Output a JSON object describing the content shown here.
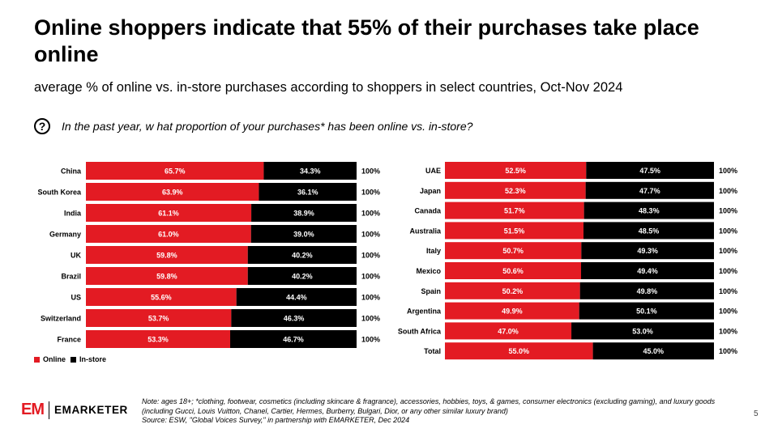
{
  "title": "Online shoppers indicate that 55% of their purchases take place online",
  "subtitle": "average % of online vs. in-store purchases according to shoppers in select countries, Oct-Nov 2024",
  "question": {
    "icon": "question-circle-icon",
    "text": "In the past year, w hat proportion of your purchases* has been online vs. in-store?"
  },
  "colors": {
    "online": "#e31b23",
    "instore": "#000000"
  },
  "legend": {
    "online": "Online",
    "instore": "In-store"
  },
  "chart_data": [
    {
      "type": "bar",
      "stacked": true,
      "orientation": "horizontal",
      "categories": [
        "China",
        "South Korea",
        "India",
        "Germany",
        "UK",
        "Brazil",
        "US",
        "Switzerland",
        "France"
      ],
      "series": [
        {
          "name": "Online",
          "values": [
            65.7,
            63.9,
            61.1,
            61.0,
            59.8,
            59.8,
            55.6,
            53.7,
            53.3
          ],
          "labels": [
            "65.7%",
            "63.9%",
            "61.1%",
            "61.0%",
            "59.8%",
            "59.8%",
            "55.6%",
            "53.7%",
            "53.3%"
          ]
        },
        {
          "name": "In-store",
          "values": [
            34.3,
            36.1,
            38.9,
            39.0,
            40.2,
            40.2,
            44.4,
            46.3,
            46.7
          ],
          "labels": [
            "34.3%",
            "36.1%",
            "38.9%",
            "39.0%",
            "40.2%",
            "40.2%",
            "44.4%",
            "46.3%",
            "46.7%"
          ]
        }
      ],
      "totals": [
        "100%",
        "100%",
        "100%",
        "100%",
        "100%",
        "100%",
        "100%",
        "100%",
        "100%"
      ],
      "xlim": [
        0,
        100
      ],
      "legend_position": "bottom-left"
    },
    {
      "type": "bar",
      "stacked": true,
      "orientation": "horizontal",
      "categories": [
        "UAE",
        "Japan",
        "Canada",
        "Australia",
        "Italy",
        "Mexico",
        "Spain",
        "Argentina",
        "South Africa",
        "Total"
      ],
      "series": [
        {
          "name": "Online",
          "values": [
            52.5,
            52.3,
            51.7,
            51.5,
            50.7,
            50.6,
            50.2,
            49.9,
            47.0,
            55.0
          ],
          "labels": [
            "52.5%",
            "52.3%",
            "51.7%",
            "51.5%",
            "50.7%",
            "50.6%",
            "50.2%",
            "49.9%",
            "47.0%",
            "55.0%"
          ]
        },
        {
          "name": "In-store",
          "values": [
            47.5,
            47.7,
            48.3,
            48.5,
            49.3,
            49.4,
            49.8,
            50.1,
            53.0,
            45.0
          ],
          "labels": [
            "47.5%",
            "47.7%",
            "48.3%",
            "48.5%",
            "49.3%",
            "49.4%",
            "49.8%",
            "50.1%",
            "53.0%",
            "45.0%"
          ]
        }
      ],
      "totals": [
        "100%",
        "100%",
        "100%",
        "100%",
        "100%",
        "100%",
        "100%",
        "100%",
        "100%",
        "100%"
      ],
      "xlim": [
        0,
        100
      ]
    }
  ],
  "footer": {
    "logo_text": "EMARKETER",
    "logo_mark": "EM",
    "note": "Note: ages 18+; *clothing, footwear, cosmetics (including skincare & fragrance), accessories, hobbies, toys, & games, consumer electronics (excluding gaming), and luxury goods (including Gucci, Louis Vuitton, Chanel, Cartier, Hermes, Burberry, Bulgari, Dior, or any other similar luxury brand)",
    "source": "Source: ESW, \"Global Voices Survey,\" in partnership with EMARKETER, Dec 2024",
    "page_number": "5"
  }
}
